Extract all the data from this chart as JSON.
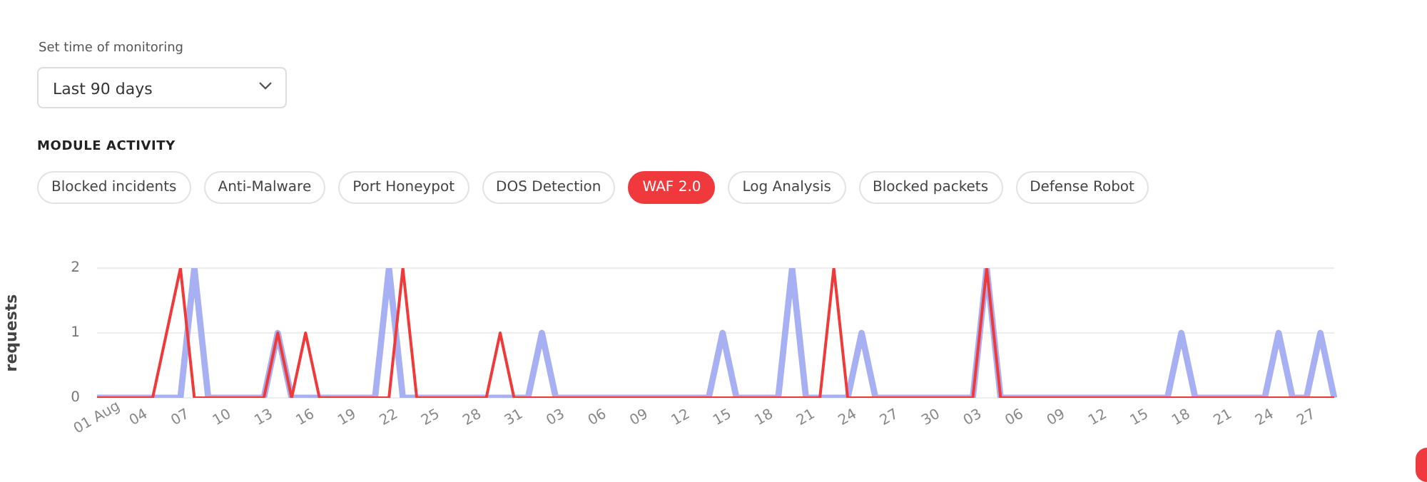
{
  "chart_data": {
    "type": "line",
    "title": "MODULE ACTIVITY",
    "annotations": [
      "Set time of monitoring",
      "Last 90 days",
      "Blocked incidents",
      "Anti-Malware",
      "Port Honeypot",
      "DOS Detection",
      "WAF 2.0",
      "Log Analysis",
      "Blocked packets",
      "Defense Robot"
    ],
    "ylabel": "requests",
    "categories": [
      "01 Aug",
      null,
      null,
      "04",
      null,
      null,
      "07",
      null,
      null,
      "10",
      null,
      null,
      "13",
      null,
      null,
      "16",
      null,
      null,
      "19",
      null,
      null,
      "22",
      null,
      null,
      "25",
      null,
      null,
      "28",
      null,
      null,
      "31",
      null,
      null,
      "03",
      null,
      null,
      "06",
      null,
      null,
      "09",
      null,
      null,
      "12",
      null,
      null,
      "15",
      null,
      null,
      "18",
      null,
      null,
      "21",
      null,
      null,
      "24",
      null,
      null,
      "27",
      null,
      null,
      "30",
      null,
      null,
      "03",
      null,
      null,
      "06",
      null,
      null,
      "09",
      null,
      null,
      "12",
      null,
      null,
      "15",
      null,
      null,
      "18",
      null,
      null,
      "21",
      null,
      null,
      "24",
      null,
      null,
      "27",
      null,
      null
    ],
    "series": [
      {
        "color": "#a8b0f4",
        "values": [
          0,
          0,
          0,
          0,
          0,
          0,
          0,
          2,
          0,
          0,
          0,
          0,
          0,
          1,
          0,
          0,
          0,
          0,
          0,
          0,
          0,
          2,
          0,
          0,
          0,
          0,
          0,
          0,
          0,
          0,
          0,
          0,
          1,
          0,
          0,
          0,
          0,
          0,
          0,
          0,
          0,
          0,
          0,
          0,
          0,
          1,
          0,
          0,
          0,
          0,
          2,
          0,
          0,
          0,
          0,
          1,
          0,
          0,
          0,
          0,
          0,
          0,
          0,
          0,
          2,
          0,
          0,
          0,
          0,
          0,
          0,
          0,
          0,
          0,
          0,
          0,
          0,
          0,
          1,
          0,
          0,
          0,
          0,
          0,
          0,
          1,
          0,
          0,
          1,
          0
        ]
      },
      {
        "color": "#f03a3a",
        "values": [
          0,
          0,
          0,
          0,
          0,
          1,
          2,
          0,
          0,
          0,
          0,
          0,
          0,
          1,
          0,
          1,
          0,
          0,
          0,
          0,
          0,
          0,
          2,
          0,
          0,
          0,
          0,
          0,
          0,
          1,
          0,
          0,
          0,
          0,
          0,
          0,
          0,
          0,
          0,
          0,
          0,
          0,
          0,
          0,
          0,
          0,
          0,
          0,
          0,
          0,
          0,
          0,
          0,
          2,
          0,
          0,
          0,
          0,
          0,
          0,
          0,
          0,
          0,
          0,
          2,
          0,
          0,
          0,
          0,
          0,
          0,
          0,
          0,
          0,
          0,
          0,
          0,
          0,
          0,
          0,
          0,
          0,
          0,
          0,
          0,
          0,
          0,
          0,
          0,
          0
        ]
      }
    ],
    "ylim": [
      0,
      2
    ],
    "yticks": [
      0,
      1,
      2
    ],
    "grid": "y",
    "marker": "none",
    "line_style": "solid"
  }
}
